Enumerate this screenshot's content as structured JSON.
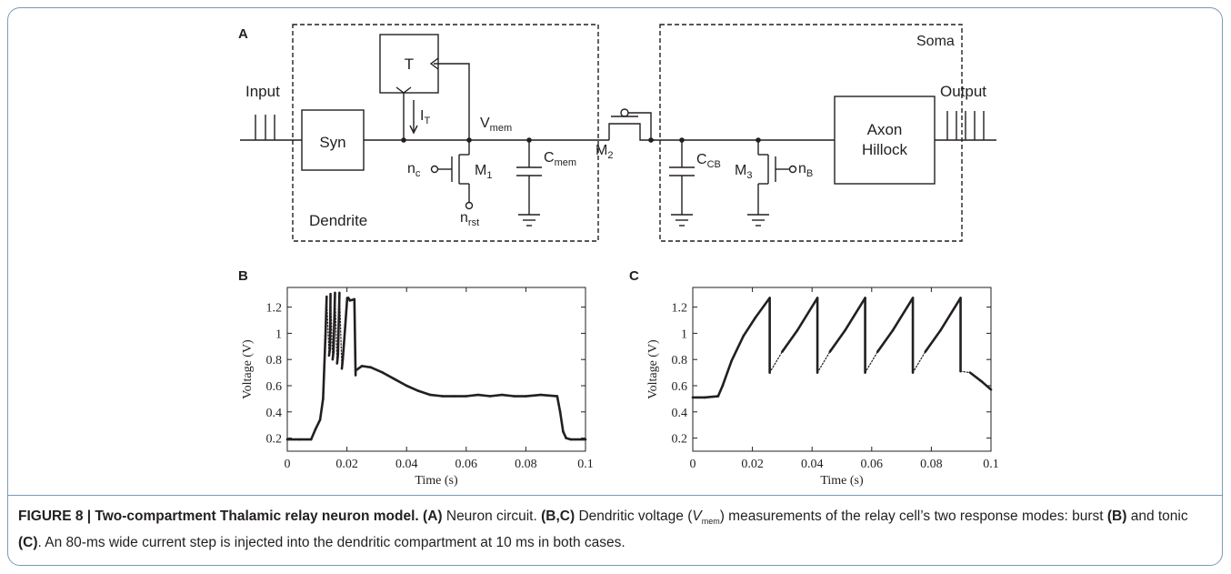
{
  "figure": {
    "panel_labels": {
      "a": "A",
      "b": "B",
      "c": "C"
    },
    "circuit": {
      "input": "Input",
      "output": "Output",
      "syn": "Syn",
      "t_block": "T",
      "i_t": "I",
      "i_t_sub": "T",
      "v_mem": "V",
      "v_mem_sub": "mem",
      "c_mem": "C",
      "c_mem_sub": "mem",
      "m1": "M",
      "m1_sub": "1",
      "m2": "M",
      "m2_sub": "2",
      "m3": "M",
      "m3_sub": "3",
      "n_c": "n",
      "n_c_sub": "c",
      "n_rst": "n",
      "n_rst_sub": "rst",
      "n_b": "n",
      "n_b_sub": "B",
      "c_cb": "C",
      "c_cb_sub": "CB",
      "dendrite": "Dendrite",
      "soma": "Soma",
      "axon_line1": "Axon",
      "axon_line2": "Hillock"
    }
  },
  "caption": {
    "label": "FIGURE 8 | Two-compartment Thalamic relay neuron model.",
    "a_ref": "(A)",
    "a_text": " Neuron circuit. ",
    "bc_ref": "(B,C)",
    "bc_text1": " Dendritic voltage (",
    "vmem_v": "V",
    "vmem_sub": "mem",
    "bc_text2": ") measurements of the relay cell’s two response modes: burst ",
    "b_ref": "(B)",
    "mid": " and tonic ",
    "c_ref": "(C)",
    "end": ". An 80-ms wide current step is injected into the dendritic compartment at 10 ms in both cases."
  },
  "chart_data": [
    {
      "panel": "B",
      "type": "line",
      "xlabel": "Time (s)",
      "ylabel": "Voltage (V)",
      "xlim": [
        0,
        0.1
      ],
      "ylim": [
        0.1,
        1.35
      ],
      "xticks": [
        0,
        0.02,
        0.04,
        0.06,
        0.08,
        0.1
      ],
      "xtick_labels": [
        "0",
        "0.02",
        "0.04",
        "0.06",
        "0.08",
        "0.1"
      ],
      "yticks": [
        0.2,
        0.4,
        0.6,
        0.8,
        1,
        1.2
      ],
      "ytick_labels": [
        "0.2",
        "0.4",
        "0.6",
        "0.8",
        "1",
        "1.2"
      ],
      "series": [
        {
          "x": [
            0,
            0.004,
            0.008,
            0.0095,
            0.011,
            0.012,
            0.0128,
            0.0132,
            0.014,
            0.0143,
            0.0145,
            0.0152,
            0.0155,
            0.016,
            0.0167,
            0.017,
            0.0175,
            0.0183,
            0.0186,
            0.019,
            0.0201,
            0.0205,
            0.021,
            0.0225,
            0.0229,
            0.0232,
            0.025,
            0.028,
            0.032,
            0.036,
            0.04,
            0.044,
            0.048,
            0.052,
            0.056,
            0.06,
            0.064,
            0.068,
            0.072,
            0.076,
            0.08,
            0.085,
            0.0905,
            0.0915,
            0.0925,
            0.0935,
            0.095,
            0.1
          ],
          "y": [
            0.19,
            0.19,
            0.19,
            0.27,
            0.34,
            0.5,
            0.98,
            1.28,
            0.83,
            0.88,
            1.3,
            0.8,
            0.86,
            1.31,
            0.77,
            0.84,
            1.31,
            0.73,
            0.8,
            0.92,
            1.27,
            1.27,
            1.25,
            1.26,
            0.68,
            0.72,
            0.75,
            0.74,
            0.7,
            0.65,
            0.6,
            0.56,
            0.53,
            0.52,
            0.52,
            0.52,
            0.53,
            0.52,
            0.53,
            0.52,
            0.52,
            0.53,
            0.52,
            0.4,
            0.25,
            0.2,
            0.19,
            0.19
          ],
          "jumps": [
            7,
            10,
            13,
            16,
            24
          ]
        }
      ]
    },
    {
      "panel": "C",
      "type": "line",
      "xlabel": "Time (s)",
      "ylabel": "Voltage (V)",
      "xlim": [
        0,
        0.1
      ],
      "ylim": [
        0.1,
        1.35
      ],
      "xticks": [
        0,
        0.02,
        0.04,
        0.06,
        0.08,
        0.1
      ],
      "xtick_labels": [
        "0",
        "0.02",
        "0.04",
        "0.06",
        "0.08",
        "0.1"
      ],
      "yticks": [
        0.2,
        0.4,
        0.6,
        0.8,
        1,
        1.2
      ],
      "ytick_labels": [
        "0.2",
        "0.4",
        "0.6",
        "0.8",
        "1",
        "1.2"
      ],
      "series": [
        {
          "x": [
            0,
            0.004,
            0.0085,
            0.01,
            0.013,
            0.017,
            0.021,
            0.0258,
            0.0258,
            0.03,
            0.035,
            0.0418,
            0.0418,
            0.046,
            0.051,
            0.0578,
            0.0578,
            0.062,
            0.067,
            0.0738,
            0.0738,
            0.078,
            0.083,
            0.0898,
            0.0898,
            0.093,
            0.097,
            0.1
          ],
          "y": [
            0.51,
            0.51,
            0.52,
            0.6,
            0.79,
            0.98,
            1.12,
            1.27,
            0.7,
            0.86,
            1.02,
            1.27,
            0.7,
            0.86,
            1.02,
            1.27,
            0.7,
            0.86,
            1.02,
            1.27,
            0.7,
            0.86,
            1.02,
            1.27,
            0.71,
            0.7,
            0.63,
            0.57
          ],
          "jumps": [
            8,
            12,
            16,
            20,
            24
          ]
        }
      ]
    }
  ]
}
